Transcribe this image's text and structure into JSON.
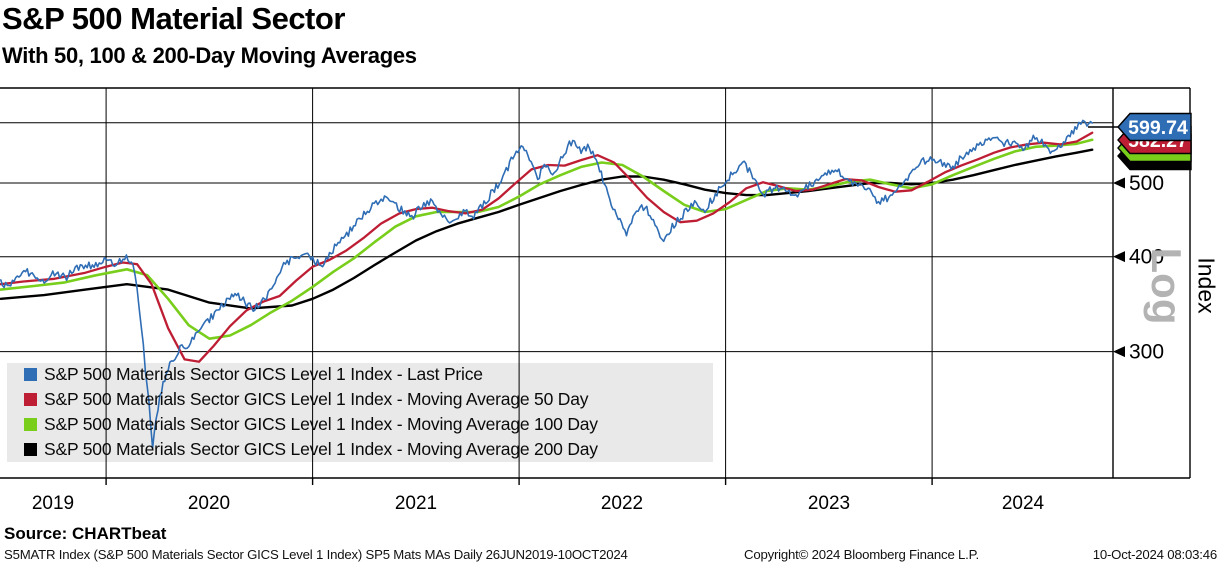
{
  "header": {
    "title": "S&P 500 Material Sector",
    "subtitle": "With 50, 100 & 200-Day Moving Averages"
  },
  "axis": {
    "right_axis_title": "Index",
    "scale_watermark": "Log"
  },
  "footer": {
    "source": "Source: CHARTbeat",
    "note_left": "S5MATR Index (S&P 500 Materials Sector GICS Level 1 Index) SP5 Mats MAs  Daily 26JUN2019-10OCT2024",
    "copyright": "Copyright© 2024 Bloomberg Finance L.P.",
    "datetime": "10-Oct-2024 08:03:46"
  },
  "chart_data": {
    "type": "line",
    "y_scale": "log",
    "x_range": "26JUN2019 - 10OCT2024",
    "x_ticks": [
      "2019",
      "2020",
      "2021",
      "2022",
      "2023",
      "2024"
    ],
    "y_ticks": [
      500,
      400,
      300
    ],
    "y_gridlines": [
      600,
      500,
      400,
      300
    ],
    "grid": true,
    "legend_position": "inside-lower-left",
    "colors": {
      "last_price": "#2F6DB5",
      "ma50": "#BE1E34",
      "ma100": "#79CE1C",
      "ma200": "#000000",
      "legend_bg": "#E9E9E9"
    },
    "badges": [
      {
        "name": "last-price-badge",
        "value": "599.74",
        "color": "#2F6DB5"
      },
      {
        "name": "ma50-badge",
        "value": "582.27",
        "color": "#BE1E34"
      },
      {
        "name": "ma100-badge",
        "value": "",
        "color": "#79CE1C"
      },
      {
        "name": "ma200-badge",
        "value": "",
        "color": "#000000"
      }
    ],
    "series": [
      {
        "name": "S&P 500 Materials Sector GICS Level 1 Index - Last Price",
        "color": "#2F6DB5",
        "width": 1.6,
        "noisy": true,
        "points": [
          [
            2019.49,
            371
          ],
          [
            2019.53,
            364
          ],
          [
            2019.57,
            377
          ],
          [
            2019.61,
            384
          ],
          [
            2019.65,
            376
          ],
          [
            2019.7,
            371
          ],
          [
            2019.75,
            381
          ],
          [
            2019.8,
            375
          ],
          [
            2019.85,
            386
          ],
          [
            2019.9,
            391
          ],
          [
            2019.95,
            389
          ],
          [
            2020.0,
            396
          ],
          [
            2020.04,
            390
          ],
          [
            2020.09,
            399
          ],
          [
            2020.13,
            392
          ],
          [
            2020.16,
            345
          ],
          [
            2020.19,
            285
          ],
          [
            2020.225,
            225
          ],
          [
            2020.26,
            262
          ],
          [
            2020.3,
            285
          ],
          [
            2020.35,
            301
          ],
          [
            2020.4,
            307
          ],
          [
            2020.45,
            318
          ],
          [
            2020.5,
            331
          ],
          [
            2020.55,
            342
          ],
          [
            2020.6,
            352
          ],
          [
            2020.64,
            356
          ],
          [
            2020.68,
            347
          ],
          [
            2020.72,
            341
          ],
          [
            2020.76,
            350
          ],
          [
            2020.81,
            365
          ],
          [
            2020.86,
            390
          ],
          [
            2020.91,
            398
          ],
          [
            2020.96,
            404
          ],
          [
            2021.0,
            396
          ],
          [
            2021.04,
            389
          ],
          [
            2021.09,
            407
          ],
          [
            2021.14,
            419
          ],
          [
            2021.19,
            436
          ],
          [
            2021.24,
            452
          ],
          [
            2021.29,
            468
          ],
          [
            2021.34,
            478
          ],
          [
            2021.38,
            469
          ],
          [
            2021.43,
            461
          ],
          [
            2021.48,
            451
          ],
          [
            2021.53,
            467
          ],
          [
            2021.58,
            474
          ],
          [
            2021.63,
            452
          ],
          [
            2021.68,
            443
          ],
          [
            2021.73,
            459
          ],
          [
            2021.78,
            451
          ],
          [
            2021.83,
            470
          ],
          [
            2021.88,
            490
          ],
          [
            2021.93,
            512
          ],
          [
            2021.97,
            543
          ],
          [
            2022.01,
            563
          ],
          [
            2022.05,
            541
          ],
          [
            2022.09,
            509
          ],
          [
            2022.13,
            526
          ],
          [
            2022.17,
            514
          ],
          [
            2022.21,
            543
          ],
          [
            2022.26,
            570
          ],
          [
            2022.3,
            549
          ],
          [
            2022.34,
            559
          ],
          [
            2022.39,
            521
          ],
          [
            2022.43,
            482
          ],
          [
            2022.48,
            448
          ],
          [
            2022.52,
            430
          ],
          [
            2022.56,
            452
          ],
          [
            2022.61,
            468
          ],
          [
            2022.65,
            444
          ],
          [
            2022.7,
            419
          ],
          [
            2022.75,
            441
          ],
          [
            2022.8,
            456
          ],
          [
            2022.85,
            471
          ],
          [
            2022.9,
            461
          ],
          [
            2022.95,
            483
          ],
          [
            2023.0,
            502
          ],
          [
            2023.05,
            520
          ],
          [
            2023.09,
            529
          ],
          [
            2023.14,
            506
          ],
          [
            2023.19,
            483
          ],
          [
            2023.24,
            494
          ],
          [
            2023.29,
            489
          ],
          [
            2023.34,
            481
          ],
          [
            2023.39,
            494
          ],
          [
            2023.44,
            504
          ],
          [
            2023.49,
            513
          ],
          [
            2023.54,
            521
          ],
          [
            2023.59,
            507
          ],
          [
            2023.64,
            497
          ],
          [
            2023.69,
            489
          ],
          [
            2023.74,
            473
          ],
          [
            2023.79,
            479
          ],
          [
            2023.84,
            494
          ],
          [
            2023.89,
            513
          ],
          [
            2023.94,
            531
          ],
          [
            2024.0,
            539
          ],
          [
            2024.05,
            529
          ],
          [
            2024.1,
            524
          ],
          [
            2024.15,
            544
          ],
          [
            2024.2,
            557
          ],
          [
            2024.25,
            567
          ],
          [
            2024.3,
            577
          ],
          [
            2024.34,
            561
          ],
          [
            2024.39,
            567
          ],
          [
            2024.44,
            556
          ],
          [
            2024.49,
            571
          ],
          [
            2024.54,
            564
          ],
          [
            2024.58,
            549
          ],
          [
            2024.62,
            561
          ],
          [
            2024.66,
            577
          ],
          [
            2024.7,
            591
          ],
          [
            2024.73,
            603
          ],
          [
            2024.75,
            592
          ],
          [
            2024.775,
            599.74
          ]
        ]
      },
      {
        "name": "S&P 500 Materials Sector GICS Level 1 Index - Moving Average 50 Day",
        "color": "#BE1E34",
        "width": 2.3,
        "noisy": false,
        "points": [
          [
            2019.49,
            368
          ],
          [
            2019.6,
            371
          ],
          [
            2019.75,
            374
          ],
          [
            2019.9,
            381
          ],
          [
            2020.0,
            388
          ],
          [
            2020.08,
            393
          ],
          [
            2020.15,
            391
          ],
          [
            2020.22,
            368
          ],
          [
            2020.3,
            322
          ],
          [
            2020.38,
            293
          ],
          [
            2020.45,
            291
          ],
          [
            2020.52,
            305
          ],
          [
            2020.6,
            324
          ],
          [
            2020.68,
            340
          ],
          [
            2020.76,
            349
          ],
          [
            2020.84,
            355
          ],
          [
            2020.92,
            372
          ],
          [
            2021.0,
            388
          ],
          [
            2021.08,
            396
          ],
          [
            2021.16,
            407
          ],
          [
            2021.25,
            424
          ],
          [
            2021.33,
            442
          ],
          [
            2021.42,
            456
          ],
          [
            2021.5,
            462
          ],
          [
            2021.58,
            464
          ],
          [
            2021.66,
            459
          ],
          [
            2021.74,
            456
          ],
          [
            2021.82,
            461
          ],
          [
            2021.9,
            477
          ],
          [
            2021.98,
            499
          ],
          [
            2022.06,
            521
          ],
          [
            2022.14,
            528
          ],
          [
            2022.22,
            527
          ],
          [
            2022.3,
            536
          ],
          [
            2022.38,
            544
          ],
          [
            2022.46,
            532
          ],
          [
            2022.54,
            505
          ],
          [
            2022.62,
            478
          ],
          [
            2022.7,
            458
          ],
          [
            2022.78,
            444
          ],
          [
            2022.86,
            446
          ],
          [
            2022.94,
            456
          ],
          [
            2023.02,
            472
          ],
          [
            2023.1,
            492
          ],
          [
            2023.18,
            501
          ],
          [
            2023.26,
            495
          ],
          [
            2023.34,
            488
          ],
          [
            2023.42,
            490
          ],
          [
            2023.5,
            498
          ],
          [
            2023.58,
            506
          ],
          [
            2023.66,
            504
          ],
          [
            2023.74,
            494
          ],
          [
            2023.82,
            487
          ],
          [
            2023.9,
            489
          ],
          [
            2023.98,
            502
          ],
          [
            2024.06,
            516
          ],
          [
            2024.14,
            527
          ],
          [
            2024.22,
            537
          ],
          [
            2024.3,
            548
          ],
          [
            2024.38,
            557
          ],
          [
            2024.46,
            562
          ],
          [
            2024.54,
            565
          ],
          [
            2024.62,
            562
          ],
          [
            2024.7,
            567
          ],
          [
            2024.775,
            582.27
          ]
        ]
      },
      {
        "name": "S&P 500 Materials Sector GICS Level 1 Index - Moving Average 100 Day",
        "color": "#79CE1C",
        "width": 2.6,
        "noisy": false,
        "points": [
          [
            2019.49,
            362
          ],
          [
            2019.65,
            366
          ],
          [
            2019.8,
            370
          ],
          [
            2019.95,
            378
          ],
          [
            2020.1,
            385
          ],
          [
            2020.2,
            378
          ],
          [
            2020.3,
            352
          ],
          [
            2020.4,
            325
          ],
          [
            2020.5,
            312
          ],
          [
            2020.6,
            315
          ],
          [
            2020.7,
            325
          ],
          [
            2020.8,
            338
          ],
          [
            2020.9,
            350
          ],
          [
            2021.0,
            365
          ],
          [
            2021.1,
            382
          ],
          [
            2021.2,
            398
          ],
          [
            2021.3,
            418
          ],
          [
            2021.4,
            438
          ],
          [
            2021.5,
            452
          ],
          [
            2021.6,
            458
          ],
          [
            2021.7,
            458
          ],
          [
            2021.8,
            458
          ],
          [
            2021.9,
            465
          ],
          [
            2022.0,
            480
          ],
          [
            2022.1,
            498
          ],
          [
            2022.2,
            512
          ],
          [
            2022.3,
            525
          ],
          [
            2022.4,
            532
          ],
          [
            2022.5,
            528
          ],
          [
            2022.6,
            510
          ],
          [
            2022.7,
            488
          ],
          [
            2022.8,
            468
          ],
          [
            2022.9,
            458
          ],
          [
            2023.0,
            462
          ],
          [
            2023.1,
            475
          ],
          [
            2023.2,
            488
          ],
          [
            2023.3,
            492
          ],
          [
            2023.4,
            490
          ],
          [
            2023.5,
            495
          ],
          [
            2023.6,
            502
          ],
          [
            2023.7,
            505
          ],
          [
            2023.8,
            498
          ],
          [
            2023.9,
            492
          ],
          [
            2024.0,
            498
          ],
          [
            2024.1,
            512
          ],
          [
            2024.2,
            525
          ],
          [
            2024.3,
            538
          ],
          [
            2024.4,
            550
          ],
          [
            2024.5,
            558
          ],
          [
            2024.6,
            560
          ],
          [
            2024.7,
            563
          ],
          [
            2024.775,
            570
          ]
        ]
      },
      {
        "name": "S&P 500 Materials Sector GICS Level 1 Index - Moving Average 200 Day",
        "color": "#000000",
        "width": 2.4,
        "noisy": false,
        "points": [
          [
            2019.49,
            352
          ],
          [
            2019.7,
            356
          ],
          [
            2019.9,
            362
          ],
          [
            2020.1,
            368
          ],
          [
            2020.3,
            362
          ],
          [
            2020.5,
            348
          ],
          [
            2020.7,
            342
          ],
          [
            2020.9,
            345
          ],
          [
            2021.0,
            352
          ],
          [
            2021.1,
            362
          ],
          [
            2021.2,
            375
          ],
          [
            2021.3,
            390
          ],
          [
            2021.4,
            405
          ],
          [
            2021.5,
            420
          ],
          [
            2021.6,
            432
          ],
          [
            2021.7,
            442
          ],
          [
            2021.8,
            450
          ],
          [
            2021.9,
            458
          ],
          [
            2022.0,
            468
          ],
          [
            2022.1,
            478
          ],
          [
            2022.2,
            488
          ],
          [
            2022.3,
            497
          ],
          [
            2022.4,
            505
          ],
          [
            2022.5,
            510
          ],
          [
            2022.6,
            510
          ],
          [
            2022.7,
            505
          ],
          [
            2022.8,
            498
          ],
          [
            2022.9,
            490
          ],
          [
            2023.0,
            485
          ],
          [
            2023.1,
            482
          ],
          [
            2023.2,
            482
          ],
          [
            2023.3,
            485
          ],
          [
            2023.4,
            488
          ],
          [
            2023.5,
            492
          ],
          [
            2023.6,
            496
          ],
          [
            2023.7,
            500
          ],
          [
            2023.8,
            500
          ],
          [
            2023.9,
            498
          ],
          [
            2024.0,
            500
          ],
          [
            2024.1,
            505
          ],
          [
            2024.2,
            512
          ],
          [
            2024.3,
            520
          ],
          [
            2024.4,
            528
          ],
          [
            2024.5,
            535
          ],
          [
            2024.6,
            542
          ],
          [
            2024.7,
            548
          ],
          [
            2024.775,
            553
          ]
        ]
      }
    ]
  }
}
